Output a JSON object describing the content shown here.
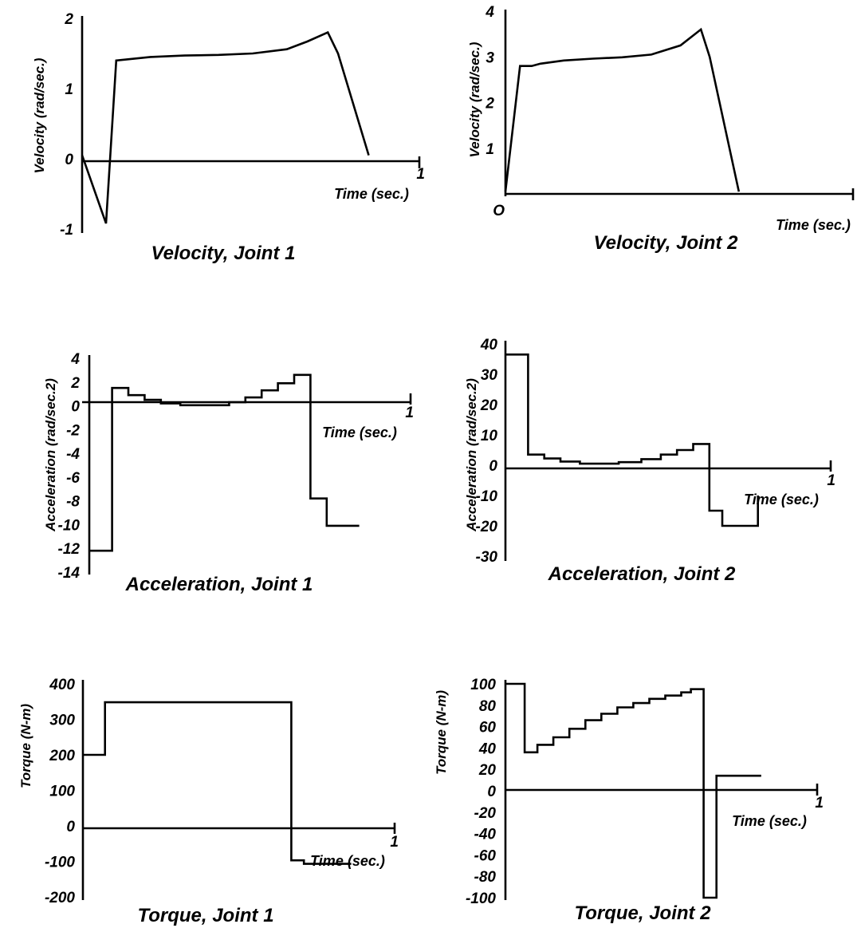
{
  "chart_data": [
    {
      "id": "vel1",
      "type": "line",
      "title": "Velocity, Joint 1",
      "ylabel": "Velocity (rad/sec.)",
      "xlabel": "Time (sec.)",
      "xlim": [
        0,
        1
      ],
      "ylim": [
        -1,
        2
      ],
      "xticks": [
        "1"
      ],
      "yticks": [
        {
          "v": 2,
          "t": "2"
        },
        {
          "v": 1,
          "t": "1"
        },
        {
          "v": 0,
          "t": "0"
        },
        {
          "v": -1,
          "t": "-1"
        }
      ],
      "series": [
        {
          "points": [
            [
              0,
              0.05
            ],
            [
              0.07,
              -0.92
            ],
            [
              0.1,
              1.4
            ],
            [
              0.2,
              1.45
            ],
            [
              0.3,
              1.47
            ],
            [
              0.4,
              1.48
            ],
            [
              0.5,
              1.5
            ],
            [
              0.6,
              1.56
            ],
            [
              0.66,
              1.67
            ],
            [
              0.72,
              1.8
            ],
            [
              0.75,
              1.5
            ],
            [
              0.84,
              0.05
            ]
          ]
        }
      ]
    },
    {
      "id": "vel2",
      "type": "line",
      "title": "Velocity, Joint 2",
      "ylabel": "Velocity (rad/sec.)",
      "xlabel": "Time (sec.)",
      "xlim": [
        0,
        1
      ],
      "ylim": [
        0,
        4
      ],
      "xticks": [
        "1"
      ],
      "yticks": [
        {
          "v": 4,
          "t": "4"
        },
        {
          "v": 3,
          "t": "3"
        },
        {
          "v": 2,
          "t": "2"
        },
        {
          "v": 1,
          "t": "1"
        },
        {
          "v": 0,
          "t": "O"
        }
      ],
      "series": [
        {
          "points": [
            [
              0,
              0.05
            ],
            [
              0.05,
              2.8
            ],
            [
              0.09,
              2.8
            ],
            [
              0.12,
              2.85
            ],
            [
              0.2,
              2.92
            ],
            [
              0.3,
              2.96
            ],
            [
              0.4,
              2.99
            ],
            [
              0.5,
              3.05
            ],
            [
              0.6,
              3.25
            ],
            [
              0.67,
              3.6
            ],
            [
              0.7,
              3.0
            ],
            [
              0.8,
              0.05
            ]
          ]
        }
      ]
    },
    {
      "id": "acc1",
      "type": "line",
      "title": "Acceleration, Joint 1",
      "ylabel": "Acceleration (rad/sec.2)",
      "xlabel": "Time (sec.)",
      "xlim": [
        0,
        1
      ],
      "ylim": [
        -14,
        4
      ],
      "xticks": [
        "1"
      ],
      "yticks": [
        {
          "v": 4,
          "t": "4"
        },
        {
          "v": 2,
          "t": "2"
        },
        {
          "v": 0,
          "t": "0"
        },
        {
          "v": -2,
          "t": "-2"
        },
        {
          "v": -4,
          "t": "-4"
        },
        {
          "v": -6,
          "t": "-6"
        },
        {
          "v": -8,
          "t": "-8"
        },
        {
          "v": -10,
          "t": "-10"
        },
        {
          "v": -12,
          "t": "-12"
        },
        {
          "v": -14,
          "t": "-14"
        }
      ],
      "series": [
        {
          "points": [
            [
              0,
              -12.2
            ],
            [
              0.07,
              -12.2
            ],
            [
              0.07,
              1.5
            ],
            [
              0.12,
              1.5
            ],
            [
              0.12,
              0.9
            ],
            [
              0.17,
              0.9
            ],
            [
              0.17,
              0.5
            ],
            [
              0.22,
              0.5
            ],
            [
              0.22,
              0.2
            ],
            [
              0.28,
              0.2
            ],
            [
              0.28,
              0.05
            ],
            [
              0.43,
              0.05
            ],
            [
              0.43,
              0.3
            ],
            [
              0.48,
              0.3
            ],
            [
              0.48,
              0.7
            ],
            [
              0.53,
              0.7
            ],
            [
              0.53,
              1.3
            ],
            [
              0.58,
              1.3
            ],
            [
              0.58,
              1.9
            ],
            [
              0.63,
              1.9
            ],
            [
              0.63,
              2.6
            ],
            [
              0.68,
              2.6
            ],
            [
              0.68,
              -7.8
            ],
            [
              0.73,
              -7.8
            ],
            [
              0.73,
              -10.1
            ],
            [
              0.83,
              -10.1
            ]
          ]
        }
      ]
    },
    {
      "id": "acc2",
      "type": "line",
      "title": "Acceleration, Joint 2",
      "ylabel": "Acceleration (rad/sec.2)",
      "xlabel": "Time (sec.)",
      "xlim": [
        0,
        1
      ],
      "ylim": [
        -30,
        40
      ],
      "xticks": [
        "1"
      ],
      "yticks": [
        {
          "v": 40,
          "t": "40"
        },
        {
          "v": 30,
          "t": "30"
        },
        {
          "v": 20,
          "t": "20"
        },
        {
          "v": 10,
          "t": "10"
        },
        {
          "v": 0,
          "t": "0"
        },
        {
          "v": -10,
          "t": "-10"
        },
        {
          "v": -20,
          "t": "-20"
        },
        {
          "v": -30,
          "t": "-30"
        }
      ],
      "series": [
        {
          "points": [
            [
              0,
              36.5
            ],
            [
              0.07,
              36.5
            ],
            [
              0.07,
              3.5
            ],
            [
              0.12,
              3.5
            ],
            [
              0.12,
              2.2
            ],
            [
              0.17,
              2.2
            ],
            [
              0.17,
              1.2
            ],
            [
              0.23,
              1.2
            ],
            [
              0.23,
              0.5
            ],
            [
              0.35,
              0.5
            ],
            [
              0.35,
              1
            ],
            [
              0.42,
              1
            ],
            [
              0.42,
              2
            ],
            [
              0.48,
              2
            ],
            [
              0.48,
              3.5
            ],
            [
              0.53,
              3.5
            ],
            [
              0.53,
              5
            ],
            [
              0.58,
              5
            ],
            [
              0.58,
              7
            ],
            [
              0.63,
              7
            ],
            [
              0.63,
              -15
            ],
            [
              0.67,
              -15
            ],
            [
              0.67,
              -20
            ],
            [
              0.78,
              -20
            ],
            [
              0.78,
              -10
            ]
          ]
        }
      ]
    },
    {
      "id": "tor1",
      "type": "line",
      "title": "Torque, Joint 1",
      "ylabel": "Torque (N-m)",
      "xlabel": "Time (sec.)",
      "xlim": [
        0,
        1
      ],
      "ylim": [
        -200,
        400
      ],
      "xticks": [
        "1"
      ],
      "yticks": [
        {
          "v": 400,
          "t": "400"
        },
        {
          "v": 300,
          "t": "300"
        },
        {
          "v": 200,
          "t": "200"
        },
        {
          "v": 100,
          "t": "100"
        },
        {
          "v": 0,
          "t": "0"
        },
        {
          "v": -100,
          "t": "-100"
        },
        {
          "v": -200,
          "t": "-200"
        }
      ],
      "series": [
        {
          "points": [
            [
              0,
              200
            ],
            [
              0.07,
              200
            ],
            [
              0.07,
              348
            ],
            [
              0.66,
              348
            ],
            [
              0.66,
              -97
            ],
            [
              0.7,
              -97
            ],
            [
              0.7,
              -107
            ],
            [
              0.85,
              -107
            ]
          ]
        }
      ]
    },
    {
      "id": "tor2",
      "type": "line",
      "title": "Torque, Joint 2",
      "ylabel": "Torque (N-m)",
      "xlabel": "Time (sec.)",
      "xlim": [
        0,
        1
      ],
      "ylim": [
        -100,
        100
      ],
      "xticks": [
        "1"
      ],
      "yticks": [
        {
          "v": 100,
          "t": "100"
        },
        {
          "v": 80,
          "t": "80"
        },
        {
          "v": 60,
          "t": "60"
        },
        {
          "v": 40,
          "t": "40"
        },
        {
          "v": 20,
          "t": "20"
        },
        {
          "v": 0,
          "t": "0"
        },
        {
          "v": -20,
          "t": "-20"
        },
        {
          "v": -40,
          "t": "-40"
        },
        {
          "v": -60,
          "t": "-60"
        },
        {
          "v": -80,
          "t": "-80"
        },
        {
          "v": -100,
          "t": "-100"
        }
      ],
      "series": [
        {
          "points": [
            [
              0,
              100
            ],
            [
              0.06,
              100
            ],
            [
              0.06,
              36
            ],
            [
              0.1,
              36
            ],
            [
              0.1,
              43
            ],
            [
              0.15,
              43
            ],
            [
              0.15,
              50
            ],
            [
              0.2,
              50
            ],
            [
              0.2,
              58
            ],
            [
              0.25,
              58
            ],
            [
              0.25,
              66
            ],
            [
              0.3,
              66
            ],
            [
              0.3,
              72
            ],
            [
              0.35,
              72
            ],
            [
              0.35,
              78
            ],
            [
              0.4,
              78
            ],
            [
              0.4,
              82
            ],
            [
              0.45,
              82
            ],
            [
              0.45,
              86
            ],
            [
              0.5,
              86
            ],
            [
              0.5,
              89
            ],
            [
              0.55,
              89
            ],
            [
              0.55,
              92
            ],
            [
              0.58,
              92
            ],
            [
              0.58,
              95
            ],
            [
              0.62,
              95
            ],
            [
              0.62,
              -100
            ],
            [
              0.66,
              -100
            ],
            [
              0.66,
              14
            ],
            [
              0.8,
              14
            ]
          ]
        }
      ]
    }
  ]
}
